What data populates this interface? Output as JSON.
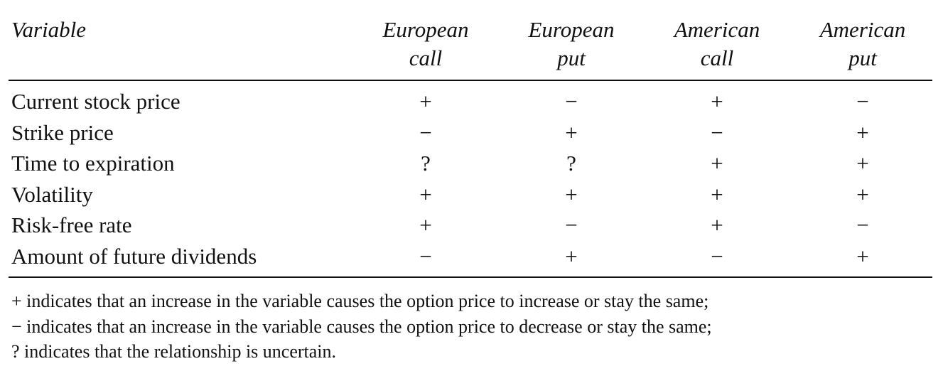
{
  "table": {
    "header": {
      "variable": "Variable",
      "columns": [
        {
          "line1": "European",
          "line2": "call"
        },
        {
          "line1": "European",
          "line2": "put"
        },
        {
          "line1": "American",
          "line2": "call"
        },
        {
          "line1": "American",
          "line2": "put"
        }
      ]
    },
    "rows": [
      {
        "label": "Current stock price",
        "values": [
          "+",
          "−",
          "+",
          "−"
        ]
      },
      {
        "label": "Strike price",
        "values": [
          "−",
          "+",
          "−",
          "+"
        ]
      },
      {
        "label": "Time to expiration",
        "values": [
          "?",
          "?",
          "+",
          "+"
        ]
      },
      {
        "label": "Volatility",
        "values": [
          "+",
          "+",
          "+",
          "+"
        ]
      },
      {
        "label": "Risk-free rate",
        "values": [
          "+",
          "−",
          "+",
          "−"
        ]
      },
      {
        "label": "Amount of future dividends",
        "values": [
          "−",
          "+",
          "−",
          "+"
        ]
      }
    ],
    "notes": [
      "+ indicates that an increase in the variable causes the option price to increase or stay the same;",
      "− indicates that an increase in the variable causes the option price to decrease or stay the same;",
      "? indicates that the relationship is uncertain."
    ]
  }
}
